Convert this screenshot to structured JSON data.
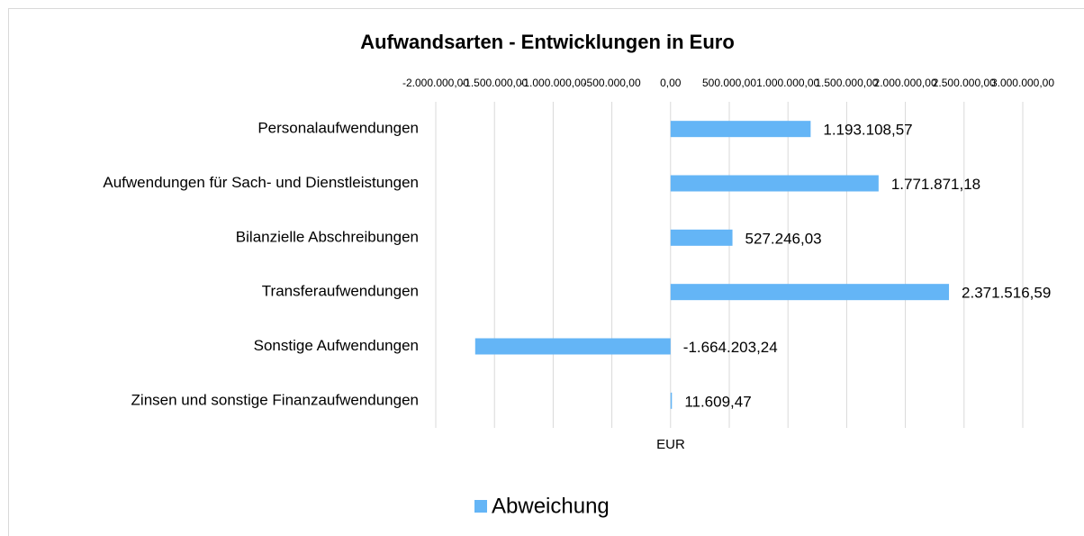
{
  "chart_data": {
    "type": "bar",
    "orientation": "horizontal",
    "title": "Aufwandsarten - Entwicklungen in Euro",
    "xlabel": "EUR",
    "categories": [
      "Personalaufwendungen",
      "Aufwendungen für Sach- und Dienstleistungen",
      "Bilanzielle Abschreibungen",
      "Transferaufwendungen",
      "Sonstige Aufwendungen",
      "Zinsen und sonstige Finanzaufwendungen"
    ],
    "series": [
      {
        "name": "Abweichung",
        "color": "#64b5f6",
        "values": [
          1193108.57,
          1771871.18,
          527246.03,
          2371516.59,
          -1664203.24,
          11609.47
        ],
        "value_labels": [
          "1.193.108,57",
          "1.771.871,18",
          "527.246,03",
          "2.371.516,59",
          "-1.664.203,24",
          "11.609,47"
        ]
      }
    ],
    "xlim": [
      -2000000,
      3000000
    ],
    "xticks": [
      {
        "value": -2000000,
        "label": "-2.000.000,00"
      },
      {
        "value": -1500000,
        "label": "-1.500.000,00"
      },
      {
        "value": -1000000,
        "label": "-1.000.000,00"
      },
      {
        "value": -500000,
        "label": "-500.000,00"
      },
      {
        "value": 0,
        "label": "0,00"
      },
      {
        "value": 500000,
        "label": "500.000,00"
      },
      {
        "value": 1000000,
        "label": "1.000.000,00"
      },
      {
        "value": 1500000,
        "label": "1.500.000,00"
      },
      {
        "value": 2000000,
        "label": "2.000.000,00"
      },
      {
        "value": 2500000,
        "label": "2.500.000,00"
      },
      {
        "value": 3000000,
        "label": "3.000.000,00"
      }
    ],
    "grid": true,
    "legend": "bottom"
  }
}
